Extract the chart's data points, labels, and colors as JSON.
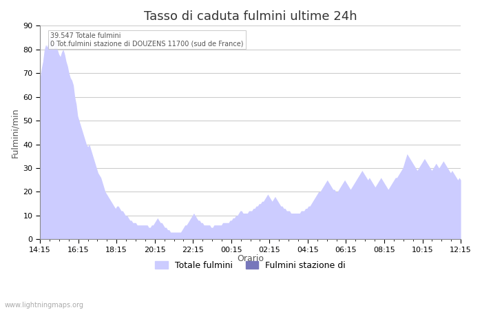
{
  "title": "Tasso di caduta fulmini ultime 24h",
  "ylabel": "Fulmini/min",
  "xlabel": "Orario",
  "annotation_line1": "39.547 Totale fulmini",
  "annotation_line2": "0 Tot.fulmini stazione di DOUZENS 11700 (sud de France)",
  "watermark": "www.lightningmaps.org",
  "xtick_labels": [
    "14:15",
    "16:15",
    "18:15",
    "20:15",
    "22:15",
    "00:15",
    "02:15",
    "04:15",
    "06:15",
    "08:15",
    "10:15",
    "12:15"
  ],
  "ytick_labels": [
    0,
    10,
    20,
    30,
    40,
    50,
    60,
    70,
    80,
    90
  ],
  "ylim": [
    0,
    90
  ],
  "fill_color_light": "#ccccff",
  "fill_color_dark": "#7777bb",
  "background_color": "#ffffff",
  "grid_color": "#cccccc",
  "legend_label_1": "Totale fulmini",
  "legend_label_2": "Fulmini stazione di",
  "title_fontsize": 13,
  "label_fontsize": 9,
  "tick_fontsize": 8,
  "y_total": [
    68,
    72,
    75,
    80,
    82,
    81,
    84,
    86,
    83,
    80,
    84,
    86,
    80,
    78,
    77,
    79,
    80,
    78,
    75,
    73,
    70,
    68,
    67,
    65,
    60,
    57,
    52,
    50,
    48,
    46,
    44,
    42,
    40,
    39,
    40,
    38,
    36,
    34,
    32,
    30,
    28,
    27,
    26,
    24,
    22,
    20,
    19,
    18,
    17,
    16,
    15,
    14,
    13,
    14,
    14,
    13,
    12,
    12,
    11,
    10,
    10,
    9,
    8,
    8,
    7,
    7,
    7,
    6,
    6,
    6,
    6,
    6,
    6,
    6,
    6,
    5,
    5,
    6,
    6,
    7,
    8,
    9,
    8,
    7,
    7,
    6,
    5,
    5,
    4,
    4,
    3,
    3,
    3,
    3,
    3,
    3,
    3,
    3,
    4,
    5,
    6,
    6,
    7,
    8,
    9,
    10,
    11,
    10,
    9,
    8,
    8,
    7,
    7,
    6,
    6,
    6,
    6,
    6,
    5,
    5,
    6,
    6,
    6,
    6,
    6,
    6,
    7,
    7,
    7,
    7,
    7,
    8,
    8,
    9,
    9,
    10,
    10,
    11,
    12,
    12,
    11,
    11,
    11,
    11,
    12,
    12,
    12,
    13,
    13,
    14,
    14,
    15,
    15,
    16,
    16,
    17,
    18,
    19,
    18,
    17,
    16,
    17,
    18,
    17,
    16,
    15,
    14,
    14,
    13,
    13,
    12,
    12,
    12,
    11,
    11,
    11,
    11,
    11,
    11,
    11,
    12,
    12,
    12,
    13,
    13,
    14,
    14,
    15,
    16,
    17,
    18,
    19,
    20,
    20,
    21,
    22,
    23,
    24,
    25,
    24,
    23,
    22,
    21,
    21,
    20,
    20,
    21,
    22,
    23,
    24,
    25,
    24,
    23,
    22,
    21,
    22,
    23,
    24,
    25,
    26,
    27,
    28,
    29,
    28,
    27,
    26,
    25,
    26,
    25,
    24,
    23,
    22,
    23,
    24,
    25,
    26,
    25,
    24,
    23,
    22,
    21,
    22,
    23,
    24,
    25,
    26,
    26,
    27,
    28,
    29,
    30,
    32,
    34,
    36,
    35,
    34,
    33,
    32,
    31,
    30,
    29,
    30,
    31,
    32,
    33,
    34,
    33,
    32,
    31,
    30,
    29,
    30,
    31,
    32,
    31,
    30,
    31,
    32,
    33,
    32,
    31,
    30,
    29,
    28,
    29,
    28,
    27,
    26,
    25,
    26,
    25
  ]
}
